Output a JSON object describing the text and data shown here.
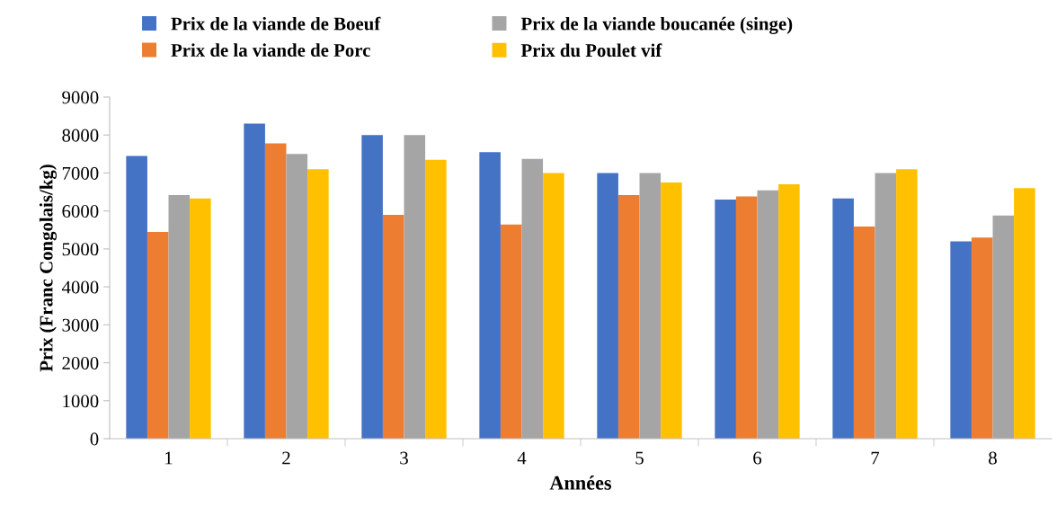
{
  "chart_data": {
    "type": "bar",
    "xlabel": "Années",
    "ylabel": "Prix (Franc Congolais/kg)",
    "categories": [
      "1",
      "2",
      "3",
      "4",
      "5",
      "6",
      "7",
      "8"
    ],
    "series": [
      {
        "name": "Prix de la viande de Boeuf",
        "color": "#4472c4",
        "values": [
          7450,
          8300,
          8000,
          7550,
          7000,
          6300,
          6330,
          5200
        ]
      },
      {
        "name": "Prix de la viande de Porc",
        "color": "#ed7d31",
        "values": [
          5450,
          7780,
          5900,
          5640,
          6420,
          6380,
          5590,
          5300
        ]
      },
      {
        "name": "Prix de la viande boucanée (singe)",
        "color": "#a5a5a5",
        "values": [
          6420,
          7500,
          8000,
          7370,
          7000,
          6540,
          7000,
          5880
        ]
      },
      {
        "name": "Prix du Poulet vif",
        "color": "#ffc000",
        "values": [
          6330,
          7100,
          7350,
          7000,
          6750,
          6700,
          7100,
          6600
        ]
      }
    ],
    "ylim": [
      0,
      9000
    ],
    "yticks": [
      0,
      1000,
      2000,
      3000,
      4000,
      5000,
      6000,
      7000,
      8000,
      9000
    ],
    "grid": false,
    "legend": "top"
  }
}
